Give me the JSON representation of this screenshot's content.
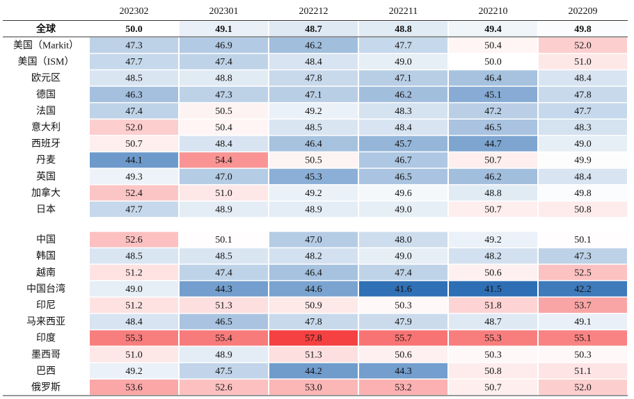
{
  "table": {
    "header": [
      "202302",
      "202301",
      "202212",
      "202211",
      "202210",
      "202209"
    ],
    "global": {
      "label": "全球",
      "values": [
        "50.0",
        "49.1",
        "48.7",
        "48.8",
        "49.4",
        "49.8"
      ]
    },
    "groups": [
      [
        {
          "label": "美国（Markit）",
          "values": [
            "47.3",
            "46.9",
            "46.2",
            "47.7",
            "50.4",
            "52.0"
          ]
        },
        {
          "label": "美国（ISM）",
          "values": [
            "47.7",
            "47.4",
            "48.4",
            "49.0",
            "50.0",
            "51.0"
          ]
        },
        {
          "label": "欧元区",
          "values": [
            "48.5",
            "48.8",
            "47.8",
            "47.1",
            "46.4",
            "48.4"
          ]
        },
        {
          "label": "德国",
          "values": [
            "46.3",
            "47.3",
            "47.1",
            "46.2",
            "45.1",
            "47.8"
          ]
        },
        {
          "label": "法国",
          "values": [
            "47.4",
            "50.5",
            "49.2",
            "48.3",
            "47.2",
            "47.7"
          ]
        },
        {
          "label": "意大利",
          "values": [
            "52.0",
            "50.4",
            "48.5",
            "48.4",
            "46.5",
            "48.3"
          ]
        },
        {
          "label": "西班牙",
          "values": [
            "50.7",
            "48.4",
            "46.4",
            "45.7",
            "44.7",
            "49.0"
          ]
        },
        {
          "label": "丹麦",
          "values": [
            "44.1",
            "54.4",
            "50.5",
            "46.7",
            "50.7",
            "49.9"
          ]
        },
        {
          "label": "英国",
          "values": [
            "49.3",
            "47.0",
            "45.3",
            "46.5",
            "46.2",
            "48.4"
          ]
        },
        {
          "label": "加拿大",
          "values": [
            "52.4",
            "51.0",
            "49.2",
            "49.6",
            "48.8",
            "49.8"
          ]
        },
        {
          "label": "日本",
          "values": [
            "47.7",
            "48.9",
            "48.9",
            "49.0",
            "50.7",
            "50.8"
          ]
        }
      ],
      [
        {
          "label": "中国",
          "values": [
            "52.6",
            "50.1",
            "47.0",
            "48.0",
            "49.2",
            "50.1"
          ]
        },
        {
          "label": "韩国",
          "values": [
            "48.5",
            "48.5",
            "48.2",
            "49.0",
            "48.2",
            "47.3"
          ]
        },
        {
          "label": "越南",
          "values": [
            "51.2",
            "47.4",
            "46.4",
            "47.4",
            "50.6",
            "52.5"
          ]
        },
        {
          "label": "中国台湾",
          "values": [
            "49.0",
            "44.3",
            "44.6",
            "41.6",
            "41.5",
            "42.2"
          ]
        },
        {
          "label": "印尼",
          "values": [
            "51.2",
            "51.3",
            "50.9",
            "50.3",
            "51.8",
            "53.7"
          ]
        },
        {
          "label": "马来西亚",
          "values": [
            "48.4",
            "46.5",
            "47.8",
            "47.9",
            "48.7",
            "49.1"
          ]
        },
        {
          "label": "印度",
          "values": [
            "55.3",
            "55.4",
            "57.8",
            "55.7",
            "55.3",
            "55.1"
          ]
        },
        {
          "label": "墨西哥",
          "values": [
            "51.0",
            "48.9",
            "51.3",
            "50.6",
            "50.3",
            "50.3"
          ]
        },
        {
          "label": "巴西",
          "values": [
            "49.2",
            "47.5",
            "44.2",
            "44.3",
            "50.8",
            "51.1"
          ]
        },
        {
          "label": "俄罗斯",
          "values": [
            "53.6",
            "52.6",
            "53.0",
            "53.2",
            "50.7",
            "52.0"
          ]
        }
      ]
    ]
  }
}
